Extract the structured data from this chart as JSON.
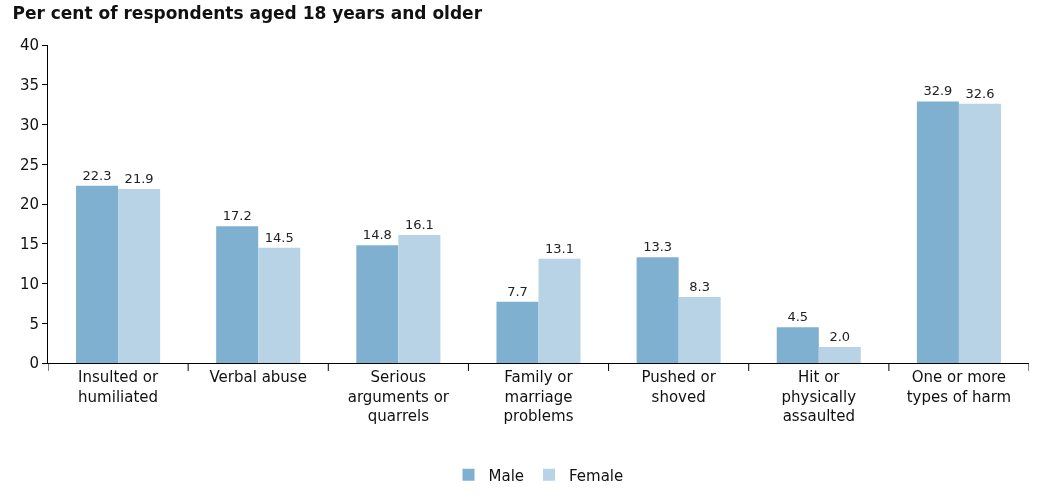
{
  "chart_data": {
    "type": "bar",
    "title": "Per cent of respondents aged 18 years and older",
    "categories": [
      "Insulted or humiliated",
      "Verbal abuse",
      "Serious arguments or quarrels",
      "Family or marriage problems",
      "Pushed or shoved",
      "Hit or physically assaulted",
      "One or more types of harm"
    ],
    "series": [
      {
        "name": "Male",
        "color": "#7fb0cf",
        "values": [
          22.3,
          17.2,
          14.8,
          7.7,
          13.3,
          4.5,
          32.9
        ],
        "value_labels": [
          "22.3",
          "17.2",
          "14.8",
          "7.7",
          "13.3",
          "4.5",
          "32.9"
        ]
      },
      {
        "name": "Female",
        "color": "#b9d3e6",
        "values": [
          21.9,
          14.5,
          16.1,
          13.1,
          8.3,
          2.0,
          32.6
        ],
        "value_labels": [
          "21.9",
          "14.5",
          "16.1",
          "13.1",
          "8.3",
          "2.0",
          "32.6"
        ]
      }
    ],
    "ylim": [
      0,
      40
    ],
    "yticks": [
      0,
      5,
      10,
      15,
      20,
      25,
      30,
      35,
      40
    ],
    "grid": false,
    "legend": "bottom"
  }
}
